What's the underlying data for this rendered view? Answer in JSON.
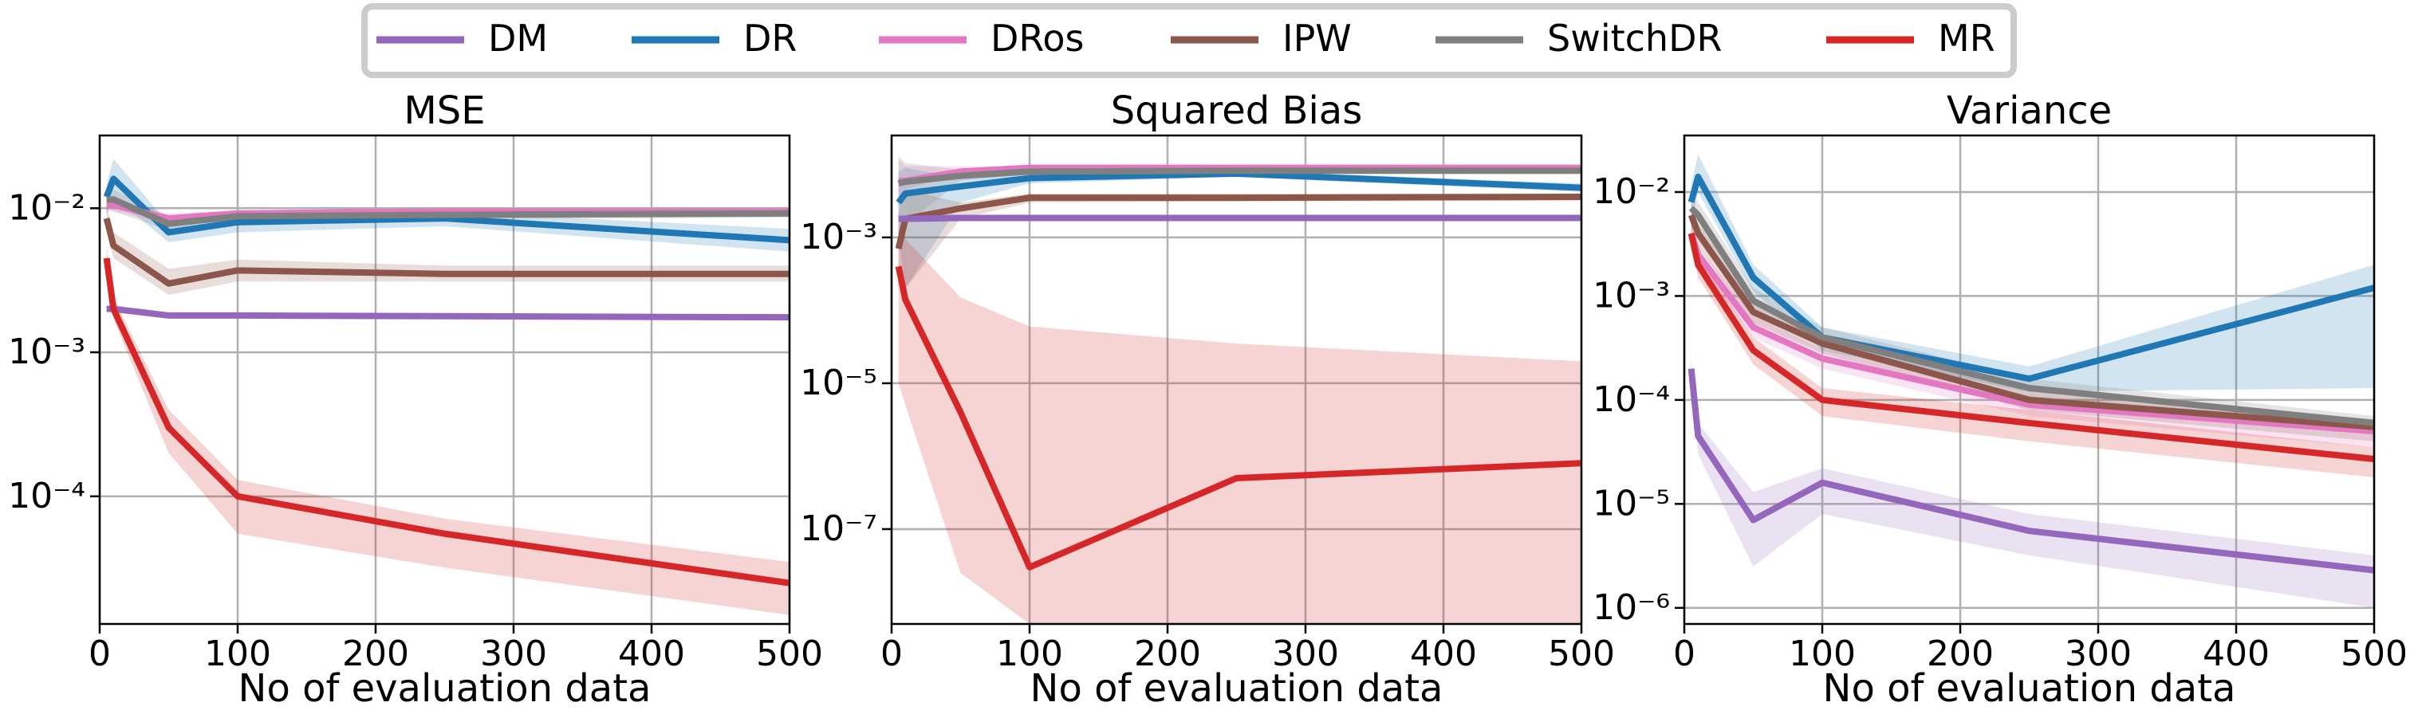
{
  "legend": {
    "placement": "top-center",
    "entries": [
      {
        "name": "DM",
        "color": "#9467bd"
      },
      {
        "name": "DR",
        "color": "#1f77b4"
      },
      {
        "name": "DRos",
        "color": "#e377c2"
      },
      {
        "name": "IPW",
        "color": "#8c564b"
      },
      {
        "name": "SwitchDR",
        "color": "#7f7f7f"
      },
      {
        "name": "MR",
        "color": "#d62728"
      }
    ]
  },
  "chart_data": [
    {
      "type": "line",
      "title": "MSE",
      "xlabel": "No of evaluation data",
      "ylabel": "",
      "xlim": [
        0,
        500
      ],
      "xticks": [
        0,
        100,
        200,
        300,
        400,
        500
      ],
      "yscale": "log",
      "ylim": [
        1.3e-05,
        0.032
      ],
      "yticks": [
        {
          "value": 0.01,
          "label": "10⁻²"
        },
        {
          "value": 0.001,
          "label": "10⁻³"
        },
        {
          "value": 0.0001,
          "label": "10⁻⁴"
        }
      ],
      "grid": true,
      "x": [
        5,
        10,
        50,
        100,
        250,
        500
      ],
      "series": [
        {
          "name": "DM",
          "values": [
            0.002,
            0.002,
            0.0018,
            0.0018,
            0.00178,
            0.00175
          ],
          "lower": [
            0.00195,
            0.00195,
            0.00176,
            0.00176,
            0.00174,
            0.00171
          ],
          "upper": [
            0.00205,
            0.00205,
            0.00184,
            0.00184,
            0.00182,
            0.00179
          ]
        },
        {
          "name": "DR",
          "values": [
            0.012,
            0.016,
            0.0068,
            0.008,
            0.0085,
            0.006
          ],
          "lower": [
            0.009,
            0.012,
            0.0058,
            0.0068,
            0.0075,
            0.005
          ],
          "upper": [
            0.015,
            0.022,
            0.0078,
            0.0092,
            0.0095,
            0.0072
          ]
        },
        {
          "name": "DRos",
          "values": [
            0.0105,
            0.0105,
            0.0085,
            0.0092,
            0.0095,
            0.0095
          ],
          "lower": [
            0.0095,
            0.0095,
            0.0078,
            0.0087,
            0.009,
            0.009
          ],
          "upper": [
            0.0115,
            0.0115,
            0.0092,
            0.0097,
            0.01,
            0.01
          ]
        },
        {
          "name": "IPW",
          "values": [
            0.0085,
            0.0055,
            0.003,
            0.0037,
            0.0035,
            0.0035
          ],
          "lower": [
            0.007,
            0.0045,
            0.0025,
            0.0031,
            0.0031,
            0.0031
          ],
          "upper": [
            0.0105,
            0.0068,
            0.0038,
            0.0044,
            0.004,
            0.004
          ]
        },
        {
          "name": "SwitchDR",
          "values": [
            0.0115,
            0.0115,
            0.0078,
            0.0088,
            0.009,
            0.0092
          ],
          "lower": [
            0.01,
            0.0095,
            0.007,
            0.0081,
            0.0084,
            0.0086
          ],
          "upper": [
            0.0135,
            0.0135,
            0.0087,
            0.0095,
            0.0096,
            0.0098
          ]
        },
        {
          "name": "MR",
          "values": [
            0.0045,
            0.002,
            0.0003,
            0.0001,
            5.5e-05,
            2.5e-05
          ],
          "lower": [
            0.0035,
            0.0017,
            0.0002,
            5.5e-05,
            3.2e-05,
            1.5e-05
          ],
          "upper": [
            0.0055,
            0.0024,
            0.0004,
            0.00013,
            7e-05,
            3.5e-05
          ]
        }
      ]
    },
    {
      "type": "line",
      "title": "Squared Bias",
      "xlabel": "No of evaluation data",
      "ylabel": "",
      "xlim": [
        0,
        500
      ],
      "xticks": [
        0,
        100,
        200,
        300,
        400,
        500
      ],
      "yscale": "log",
      "ylim": [
        5e-09,
        0.025
      ],
      "yticks": [
        {
          "value": 0.001,
          "label": "10⁻³"
        },
        {
          "value": 1e-05,
          "label": "10⁻⁵"
        },
        {
          "value": 1e-07,
          "label": "10⁻⁷"
        }
      ],
      "grid": true,
      "x": [
        5,
        10,
        50,
        100,
        250,
        500
      ],
      "series": [
        {
          "name": "DM",
          "values": [
            0.0018,
            0.0018,
            0.00185,
            0.00185,
            0.00185,
            0.00185
          ],
          "lower": [
            0.00175,
            0.00175,
            0.0018,
            0.0018,
            0.0018,
            0.0018
          ],
          "upper": [
            0.0019,
            0.0019,
            0.0019,
            0.0019,
            0.0019,
            0.0019
          ]
        },
        {
          "name": "DR",
          "values": [
            0.003,
            0.004,
            0.005,
            0.0065,
            0.0075,
            0.0048
          ],
          "lower": [
            0.001,
            0.0002,
            0.003,
            0.0055,
            0.0068,
            0.0042
          ],
          "upper": [
            0.008,
            0.009,
            0.0065,
            0.0075,
            0.0082,
            0.0055
          ]
        },
        {
          "name": "DRos",
          "values": [
            0.006,
            0.006,
            0.008,
            0.009,
            0.009,
            0.009
          ],
          "lower": [
            0.002,
            0.0045,
            0.0075,
            0.0085,
            0.0085,
            0.0085
          ],
          "upper": [
            0.012,
            0.0095,
            0.0095,
            0.0095,
            0.0095,
            0.0095
          ]
        },
        {
          "name": "IPW",
          "values": [
            0.0007,
            0.0018,
            0.0025,
            0.0035,
            0.0035,
            0.0036
          ],
          "lower": [
            0.00025,
            0.0002,
            0.0018,
            0.003,
            0.0031,
            0.0032
          ],
          "upper": [
            0.002,
            0.0045,
            0.003,
            0.004,
            0.004,
            0.004
          ]
        },
        {
          "name": "SwitchDR",
          "values": [
            0.0055,
            0.0058,
            0.007,
            0.008,
            0.0082,
            0.0082
          ],
          "lower": [
            0.0008,
            0.0015,
            0.006,
            0.0072,
            0.0075,
            0.0075
          ],
          "upper": [
            0.013,
            0.0105,
            0.0085,
            0.009,
            0.009,
            0.009
          ]
        },
        {
          "name": "MR",
          "values": [
            0.0004,
            0.00014,
            4e-06,
            3e-08,
            5e-07,
            8e-07
          ],
          "lower": [
            1e-05,
            5e-06,
            2.5e-08,
            5e-09,
            5e-09,
            5e-09
          ],
          "upper": [
            0.0013,
            0.00095,
            0.00015,
            6e-05,
            3.5e-05,
            2e-05
          ]
        }
      ]
    },
    {
      "type": "line",
      "title": "Variance",
      "xlabel": "No of evaluation data",
      "ylabel": "",
      "xlim": [
        0,
        500
      ],
      "xticks": [
        0,
        100,
        200,
        300,
        400,
        500
      ],
      "yscale": "log",
      "ylim": [
        7e-07,
        0.035
      ],
      "yticks": [
        {
          "value": 0.01,
          "label": "10⁻²"
        },
        {
          "value": 0.001,
          "label": "10⁻³"
        },
        {
          "value": 0.0001,
          "label": "10⁻⁴"
        },
        {
          "value": 1e-05,
          "label": "10⁻⁵"
        },
        {
          "value": 1e-06,
          "label": "10⁻⁶"
        }
      ],
      "grid": true,
      "x": [
        5,
        10,
        50,
        100,
        250,
        500
      ],
      "series": [
        {
          "name": "DM",
          "values": [
            0.0002,
            4.5e-05,
            7e-06,
            1.6e-05,
            5.5e-06,
            2.3e-06
          ],
          "lower": [
            0.00014,
            3e-05,
            2.5e-06,
            8e-06,
            3.2e-06,
            1e-06
          ],
          "upper": [
            0.00025,
            6e-05,
            1.3e-05,
            2.2e-05,
            8e-06,
            3.2e-06
          ]
        },
        {
          "name": "DR",
          "values": [
            0.008,
            0.014,
            0.0015,
            0.0004,
            0.00016,
            0.0012
          ],
          "lower": [
            0.005,
            0.01,
            0.0011,
            0.0003,
            0.00012,
            0.00013
          ],
          "upper": [
            0.012,
            0.023,
            0.002,
            0.0005,
            0.00021,
            0.002
          ]
        },
        {
          "name": "DRos",
          "values": [
            0.004,
            0.0025,
            0.0005,
            0.00025,
            9e-05,
            5e-05
          ],
          "lower": [
            0.003,
            0.002,
            0.0004,
            0.0002,
            7e-05,
            3.5e-05
          ],
          "upper": [
            0.005,
            0.003,
            0.00065,
            0.00031,
            0.00011,
            6e-05
          ]
        },
        {
          "name": "IPW",
          "values": [
            0.006,
            0.004,
            0.0007,
            0.00035,
            0.0001,
            5.5e-05
          ],
          "lower": [
            0.0045,
            0.003,
            0.00055,
            0.00028,
            8e-05,
            4e-05
          ],
          "upper": [
            0.008,
            0.005,
            0.00085,
            0.00042,
            0.00013,
            6.5e-05
          ]
        },
        {
          "name": "SwitchDR",
          "values": [
            0.007,
            0.006,
            0.0009,
            0.0004,
            0.00013,
            6e-05
          ],
          "lower": [
            0.0055,
            0.0045,
            0.0007,
            0.00032,
            0.0001,
            5e-05
          ],
          "upper": [
            0.009,
            0.008,
            0.0012,
            0.0005,
            0.00016,
            7e-05
          ]
        },
        {
          "name": "MR",
          "values": [
            0.004,
            0.002,
            0.0003,
            0.0001,
            6e-05,
            2.7e-05
          ],
          "lower": [
            0.003,
            0.0015,
            0.00022,
            7e-05,
            4e-05,
            1.8e-05
          ],
          "upper": [
            0.005,
            0.0025,
            0.0004,
            0.00013,
            8e-05,
            3.5e-05
          ]
        }
      ]
    }
  ]
}
